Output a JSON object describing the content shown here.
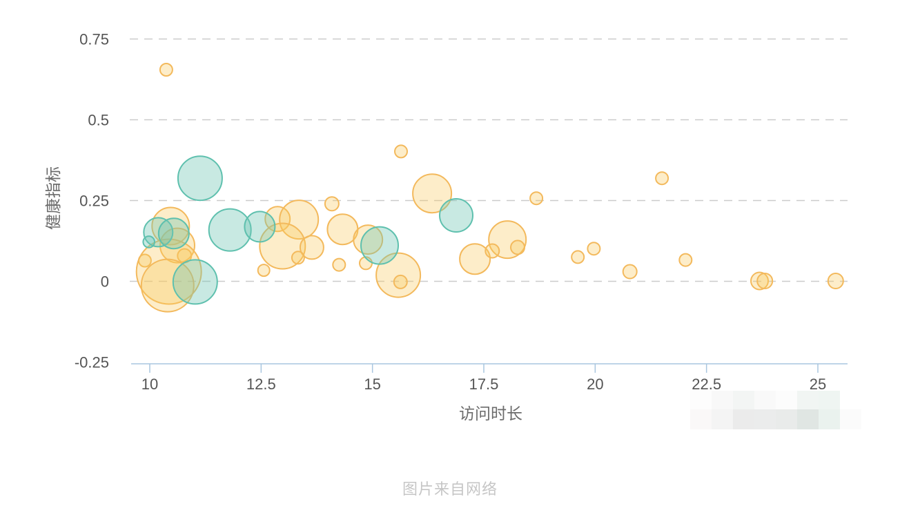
{
  "caption": "图片来自网络",
  "chart_data": {
    "type": "scatter",
    "subtype": "bubble",
    "title": "",
    "xlabel": "访问时长",
    "ylabel": "健康指标",
    "xlim": [
      9.55,
      25.67
    ],
    "ylim": [
      -0.255,
      0.78
    ],
    "x_ticks": [
      10,
      12.5,
      15,
      17.5,
      20,
      22.5,
      25
    ],
    "x_tick_labels": [
      "10",
      "12.5",
      "15",
      "17.5",
      "20",
      "22.5",
      "25"
    ],
    "y_ticks": [
      -0.25,
      0,
      0.25,
      0.5,
      0.75
    ],
    "y_tick_labels": [
      "-0.25",
      "0",
      "0.25",
      "0.5",
      "0.75"
    ],
    "grid": "horizontal-dashed",
    "legend": null,
    "r_unit": "px",
    "style": {
      "grid_color": "#cbcbcb",
      "axis_color": "#a9c6df",
      "tick_text_color": "#555555",
      "title_color": "#6b6b6b"
    },
    "series": [
      {
        "name": "orange",
        "color": "#F3B95C",
        "fill": "rgba(249,199,90,0.33)",
        "points": [
          [
            10.37,
            0.655,
            9
          ],
          [
            10.47,
            0.171,
            27
          ],
          [
            9.89,
            0.064,
            9
          ],
          [
            10.62,
            0.111,
            25
          ],
          [
            10.78,
            0.079,
            10
          ],
          [
            10.43,
            0.03,
            47
          ],
          [
            10.4,
            -0.013,
            38
          ],
          [
            12.87,
            0.193,
            18
          ],
          [
            13.35,
            0.191,
            28
          ],
          [
            12.98,
            0.109,
            33
          ],
          [
            13.64,
            0.105,
            17
          ],
          [
            13.33,
            0.073,
            9
          ],
          [
            12.56,
            0.034,
            8.5
          ],
          [
            14.09,
            0.24,
            10
          ],
          [
            14.33,
            0.161,
            22
          ],
          [
            14.9,
            0.129,
            21
          ],
          [
            14.25,
            0.051,
            9
          ],
          [
            14.85,
            0.056,
            9
          ],
          [
            15.58,
            0.019,
            32
          ],
          [
            15.63,
            -0.002,
            9.5
          ],
          [
            15.64,
            0.402,
            9
          ],
          [
            16.34,
            0.272,
            28
          ],
          [
            17.3,
            0.069,
            22
          ],
          [
            18.03,
            0.129,
            27
          ],
          [
            17.69,
            0.094,
            10
          ],
          [
            18.26,
            0.105,
            10
          ],
          [
            18.68,
            0.257,
            9
          ],
          [
            19.61,
            0.075,
            9
          ],
          [
            19.97,
            0.101,
            9
          ],
          [
            20.78,
            0.03,
            10
          ],
          [
            21.5,
            0.319,
            9
          ],
          [
            22.03,
            0.066,
            9
          ],
          [
            23.69,
            0.001,
            12.5
          ],
          [
            23.81,
            0.001,
            11
          ],
          [
            25.4,
            0.001,
            11
          ]
        ]
      },
      {
        "name": "teal",
        "color": "#5EC0AE",
        "fill": "rgba(110,198,180,0.38)",
        "points": [
          [
            11.13,
            0.319,
            32
          ],
          [
            10.19,
            0.152,
            21
          ],
          [
            10.54,
            0.148,
            22
          ],
          [
            9.98,
            0.122,
            8.3
          ],
          [
            11.02,
            -0.002,
            32
          ],
          [
            11.8,
            0.159,
            30.5
          ],
          [
            12.47,
            0.169,
            22
          ],
          [
            15.16,
            0.111,
            27
          ],
          [
            16.88,
            0.204,
            24
          ]
        ]
      }
    ]
  },
  "watermark": {
    "rows": [
      [
        "#fdfdfd",
        "#f8f8f8",
        "#f3f5f4",
        "#f9f9f9",
        "#fcfcfc",
        "#f1f5f3",
        "#eff5f2",
        "#ffffff"
      ],
      [
        "#faf8f8",
        "#f4f4f4",
        "#ebebeb",
        "#ebecec",
        "#e9ebea",
        "#e0e6e3",
        "#eaf2ee",
        "#fbfbfb"
      ]
    ]
  }
}
